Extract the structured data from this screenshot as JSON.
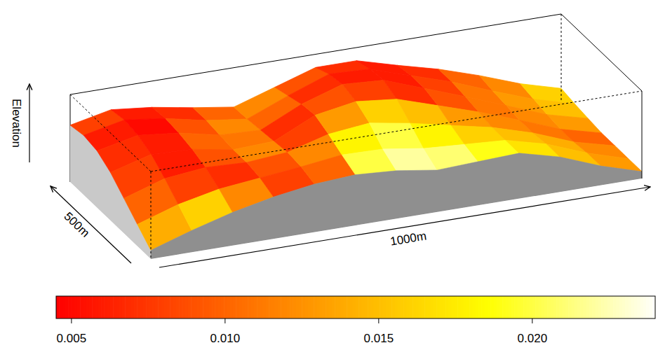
{
  "chart_data": {
    "type": "surface",
    "zlabel": "Elevation",
    "ylabel": "500m",
    "xlabel": "1000m",
    "zlim": [
      0,
      1
    ],
    "elevation": [
      [
        0.1,
        0.25,
        0.38,
        0.48,
        0.55,
        0.58,
        0.55,
        0.48,
        0.5,
        0.52,
        0.4,
        0.22,
        0.08
      ],
      [
        0.25,
        0.4,
        0.5,
        0.55,
        0.6,
        0.66,
        0.65,
        0.58,
        0.55,
        0.52,
        0.4,
        0.22,
        0.08
      ],
      [
        0.4,
        0.55,
        0.6,
        0.58,
        0.62,
        0.75,
        0.8,
        0.72,
        0.62,
        0.52,
        0.38,
        0.2,
        0.08
      ],
      [
        0.55,
        0.68,
        0.66,
        0.58,
        0.6,
        0.82,
        0.9,
        0.85,
        0.7,
        0.55,
        0.38,
        0.2,
        0.08
      ],
      [
        0.65,
        0.75,
        0.7,
        0.6,
        0.58,
        0.8,
        0.95,
        0.92,
        0.75,
        0.58,
        0.4,
        0.22,
        0.1
      ],
      [
        0.68,
        0.78,
        0.72,
        0.62,
        0.56,
        0.75,
        0.92,
        0.9,
        0.75,
        0.6,
        0.42,
        0.25,
        0.12
      ],
      [
        0.65,
        0.75,
        0.7,
        0.62,
        0.55,
        0.7,
        0.85,
        0.85,
        0.72,
        0.6,
        0.45,
        0.28,
        0.15
      ]
    ],
    "values": [
      [
        0.014,
        0.016,
        0.012,
        0.008,
        0.01,
        0.02,
        0.022,
        0.021,
        0.019,
        0.017,
        0.015,
        0.013
      ],
      [
        0.01,
        0.008,
        0.007,
        0.009,
        0.012,
        0.018,
        0.02,
        0.018,
        0.016,
        0.015,
        0.014,
        0.012
      ],
      [
        0.008,
        0.006,
        0.009,
        0.012,
        0.008,
        0.013,
        0.016,
        0.015,
        0.013,
        0.012,
        0.011,
        0.01
      ],
      [
        0.007,
        0.006,
        0.01,
        0.011,
        0.007,
        0.009,
        0.008,
        0.007,
        0.009,
        0.011,
        0.012,
        0.013
      ],
      [
        0.006,
        0.005,
        0.009,
        0.012,
        0.01,
        0.007,
        0.006,
        0.006,
        0.008,
        0.011,
        0.013,
        0.015
      ],
      [
        0.008,
        0.006,
        0.007,
        0.01,
        0.012,
        0.009,
        0.007,
        0.006,
        0.007,
        0.01,
        0.012,
        0.016
      ]
    ],
    "colorbar": {
      "range": [
        0.0045,
        0.024
      ],
      "ticks": [
        {
          "value": 0.005,
          "label": "0.005"
        },
        {
          "value": 0.01,
          "label": "0.010"
        },
        {
          "value": 0.015,
          "label": "0.015"
        },
        {
          "value": 0.02,
          "label": "0.020"
        }
      ]
    }
  }
}
